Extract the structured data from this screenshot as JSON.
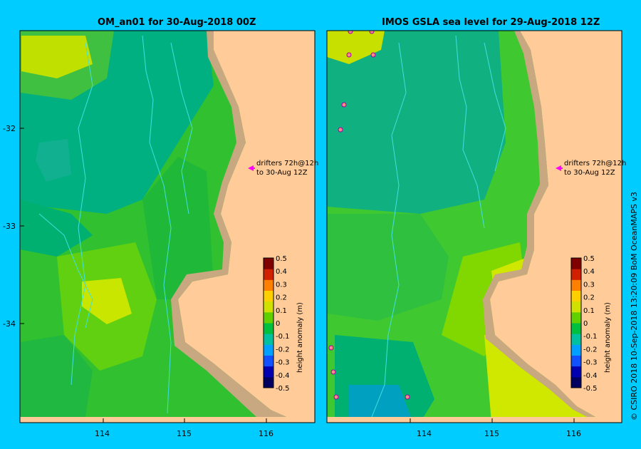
{
  "left_panel": {
    "title": "OM_an01  for 30-Aug-2018 00Z",
    "annotation_line1": "drifters 72h@12h",
    "annotation_line2": "to 30-Aug 12Z"
  },
  "right_panel": {
    "title": "IMOS GSLA sea level  for 29-Aug-2018 12Z",
    "annotation_line1": "drifters 72h@12h",
    "annotation_line2": "to 30-Aug 12Z"
  },
  "axes": {
    "y_ticks": [
      "-32",
      "-33",
      "-34"
    ],
    "x_ticks": [
      "114",
      "115",
      "116"
    ]
  },
  "colorbar": {
    "label": "height anomaly (m)",
    "ticks": [
      "0.5",
      "0.4",
      "0.3",
      "0.2",
      "0.1",
      "0",
      "-0.1",
      "-0.2",
      "-0.3",
      "-0.4",
      "-0.5"
    ],
    "colors": [
      "#000060",
      "#0000b0",
      "#1050ff",
      "#00a0ff",
      "#00c0a0",
      "#00c040",
      "#60d000",
      "#d0e000",
      "#ffd000",
      "#ff8000",
      "#d02000",
      "#800000"
    ]
  },
  "credit": "© CSIRO 2018   10-Sep-2018 13:20:09 BoM OceanMAPS v3",
  "colors": {
    "background": "#00ccff",
    "land": "#ffcc99",
    "coast": "#c8a880",
    "arrow": "#ff00ff"
  }
}
